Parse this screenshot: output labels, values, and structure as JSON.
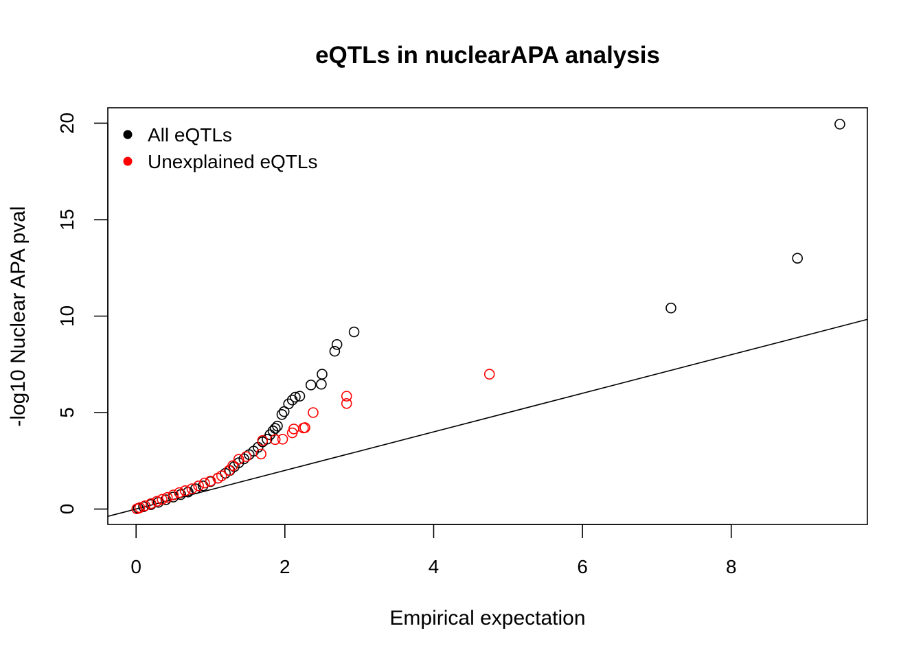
{
  "chart_data": {
    "type": "scatter",
    "title": "eQTLs in nuclearAPA analysis",
    "xlabel": "Empirical expectation",
    "ylabel": "-log10 Nuclear APA pval",
    "xlim": [
      -0.38,
      9.83
    ],
    "ylim": [
      -0.8,
      20.8
    ],
    "x_ticks": [
      "0",
      "2",
      "4",
      "6",
      "8"
    ],
    "y_ticks": [
      "0",
      "5",
      "10",
      "15",
      "20"
    ],
    "grid": false,
    "legend_position": "top-left",
    "reference_line": "y = x",
    "series": [
      {
        "name": "All eQTLs",
        "color": "#000000",
        "points": [
          [
            9.46,
            19.95
          ],
          [
            8.89,
            13.0
          ],
          [
            7.19,
            10.42
          ],
          [
            2.93,
            9.18
          ],
          [
            2.7,
            8.53
          ],
          [
            2.67,
            8.18
          ],
          [
            2.5,
            6.99
          ],
          [
            2.49,
            6.47
          ],
          [
            2.35,
            6.43
          ],
          [
            2.2,
            5.85
          ],
          [
            2.14,
            5.8
          ],
          [
            2.1,
            5.65
          ],
          [
            2.05,
            5.45
          ],
          [
            1.99,
            5.05
          ],
          [
            1.96,
            4.9
          ],
          [
            1.9,
            4.3
          ],
          [
            1.87,
            4.18
          ],
          [
            1.84,
            4.05
          ],
          [
            1.8,
            3.85
          ],
          [
            1.76,
            3.62
          ],
          [
            1.7,
            3.48
          ],
          [
            1.64,
            3.2
          ],
          [
            1.58,
            3.0
          ],
          [
            1.52,
            2.82
          ],
          [
            1.45,
            2.6
          ],
          [
            1.38,
            2.4
          ],
          [
            1.32,
            2.2
          ],
          [
            1.26,
            2.0
          ],
          [
            1.2,
            1.85
          ],
          [
            1.1,
            1.6
          ],
          [
            1.0,
            1.42
          ],
          [
            0.9,
            1.2
          ],
          [
            0.8,
            1.05
          ],
          [
            0.7,
            0.88
          ],
          [
            0.6,
            0.75
          ],
          [
            0.5,
            0.62
          ],
          [
            0.4,
            0.48
          ],
          [
            0.3,
            0.35
          ],
          [
            0.2,
            0.23
          ],
          [
            0.1,
            0.12
          ],
          [
            0.03,
            0.04
          ]
        ]
      },
      {
        "name": "Unexplained eQTLs",
        "color": "#ff0000",
        "points": [
          [
            4.75,
            6.99
          ],
          [
            2.83,
            5.85
          ],
          [
            2.83,
            5.47
          ],
          [
            2.38,
            5.0
          ],
          [
            2.27,
            4.22
          ],
          [
            2.25,
            4.2
          ],
          [
            2.12,
            4.15
          ],
          [
            2.1,
            3.95
          ],
          [
            1.97,
            3.62
          ],
          [
            1.87,
            3.6
          ],
          [
            1.7,
            3.55
          ],
          [
            1.68,
            2.85
          ],
          [
            1.48,
            2.72
          ],
          [
            1.38,
            2.58
          ],
          [
            1.3,
            2.25
          ],
          [
            1.25,
            2.0
          ],
          [
            1.15,
            1.72
          ],
          [
            1.1,
            1.6
          ],
          [
            1.0,
            1.45
          ],
          [
            0.92,
            1.35
          ],
          [
            0.84,
            1.2
          ],
          [
            0.75,
            1.05
          ],
          [
            0.66,
            0.95
          ],
          [
            0.58,
            0.85
          ],
          [
            0.5,
            0.73
          ],
          [
            0.42,
            0.6
          ],
          [
            0.35,
            0.5
          ],
          [
            0.28,
            0.4
          ],
          [
            0.2,
            0.28
          ],
          [
            0.12,
            0.17
          ],
          [
            0.05,
            0.07
          ],
          [
            0.01,
            0.01
          ]
        ]
      }
    ]
  }
}
